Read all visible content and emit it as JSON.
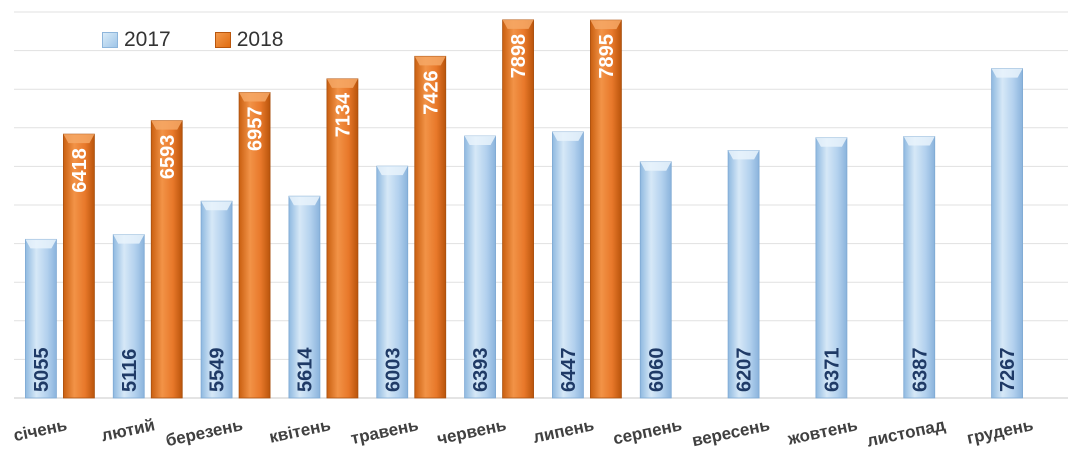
{
  "chart_data": {
    "type": "bar",
    "categories": [
      "січень",
      "лютий",
      "березень",
      "квітень",
      "травень",
      "червень",
      "липень",
      "серпень",
      "вересень",
      "жовтень",
      "листопад",
      "грудень"
    ],
    "series": [
      {
        "name": "2017",
        "values": [
          5055,
          5116,
          5549,
          5614,
          6003,
          6393,
          6447,
          6060,
          6207,
          6371,
          6387,
          7267
        ],
        "color": "#a8cbeb"
      },
      {
        "name": "2018",
        "values": [
          6418,
          6593,
          6957,
          7134,
          7426,
          7898,
          7895,
          null,
          null,
          null,
          null,
          null
        ],
        "color": "#ec7d25"
      }
    ],
    "ylim": [
      3000,
      8000
    ],
    "grid": true,
    "legend": "top-left",
    "title": "",
    "xlabel": "",
    "ylabel": ""
  },
  "legend": {
    "items": [
      {
        "label": "2017"
      },
      {
        "label": "2018"
      }
    ]
  }
}
